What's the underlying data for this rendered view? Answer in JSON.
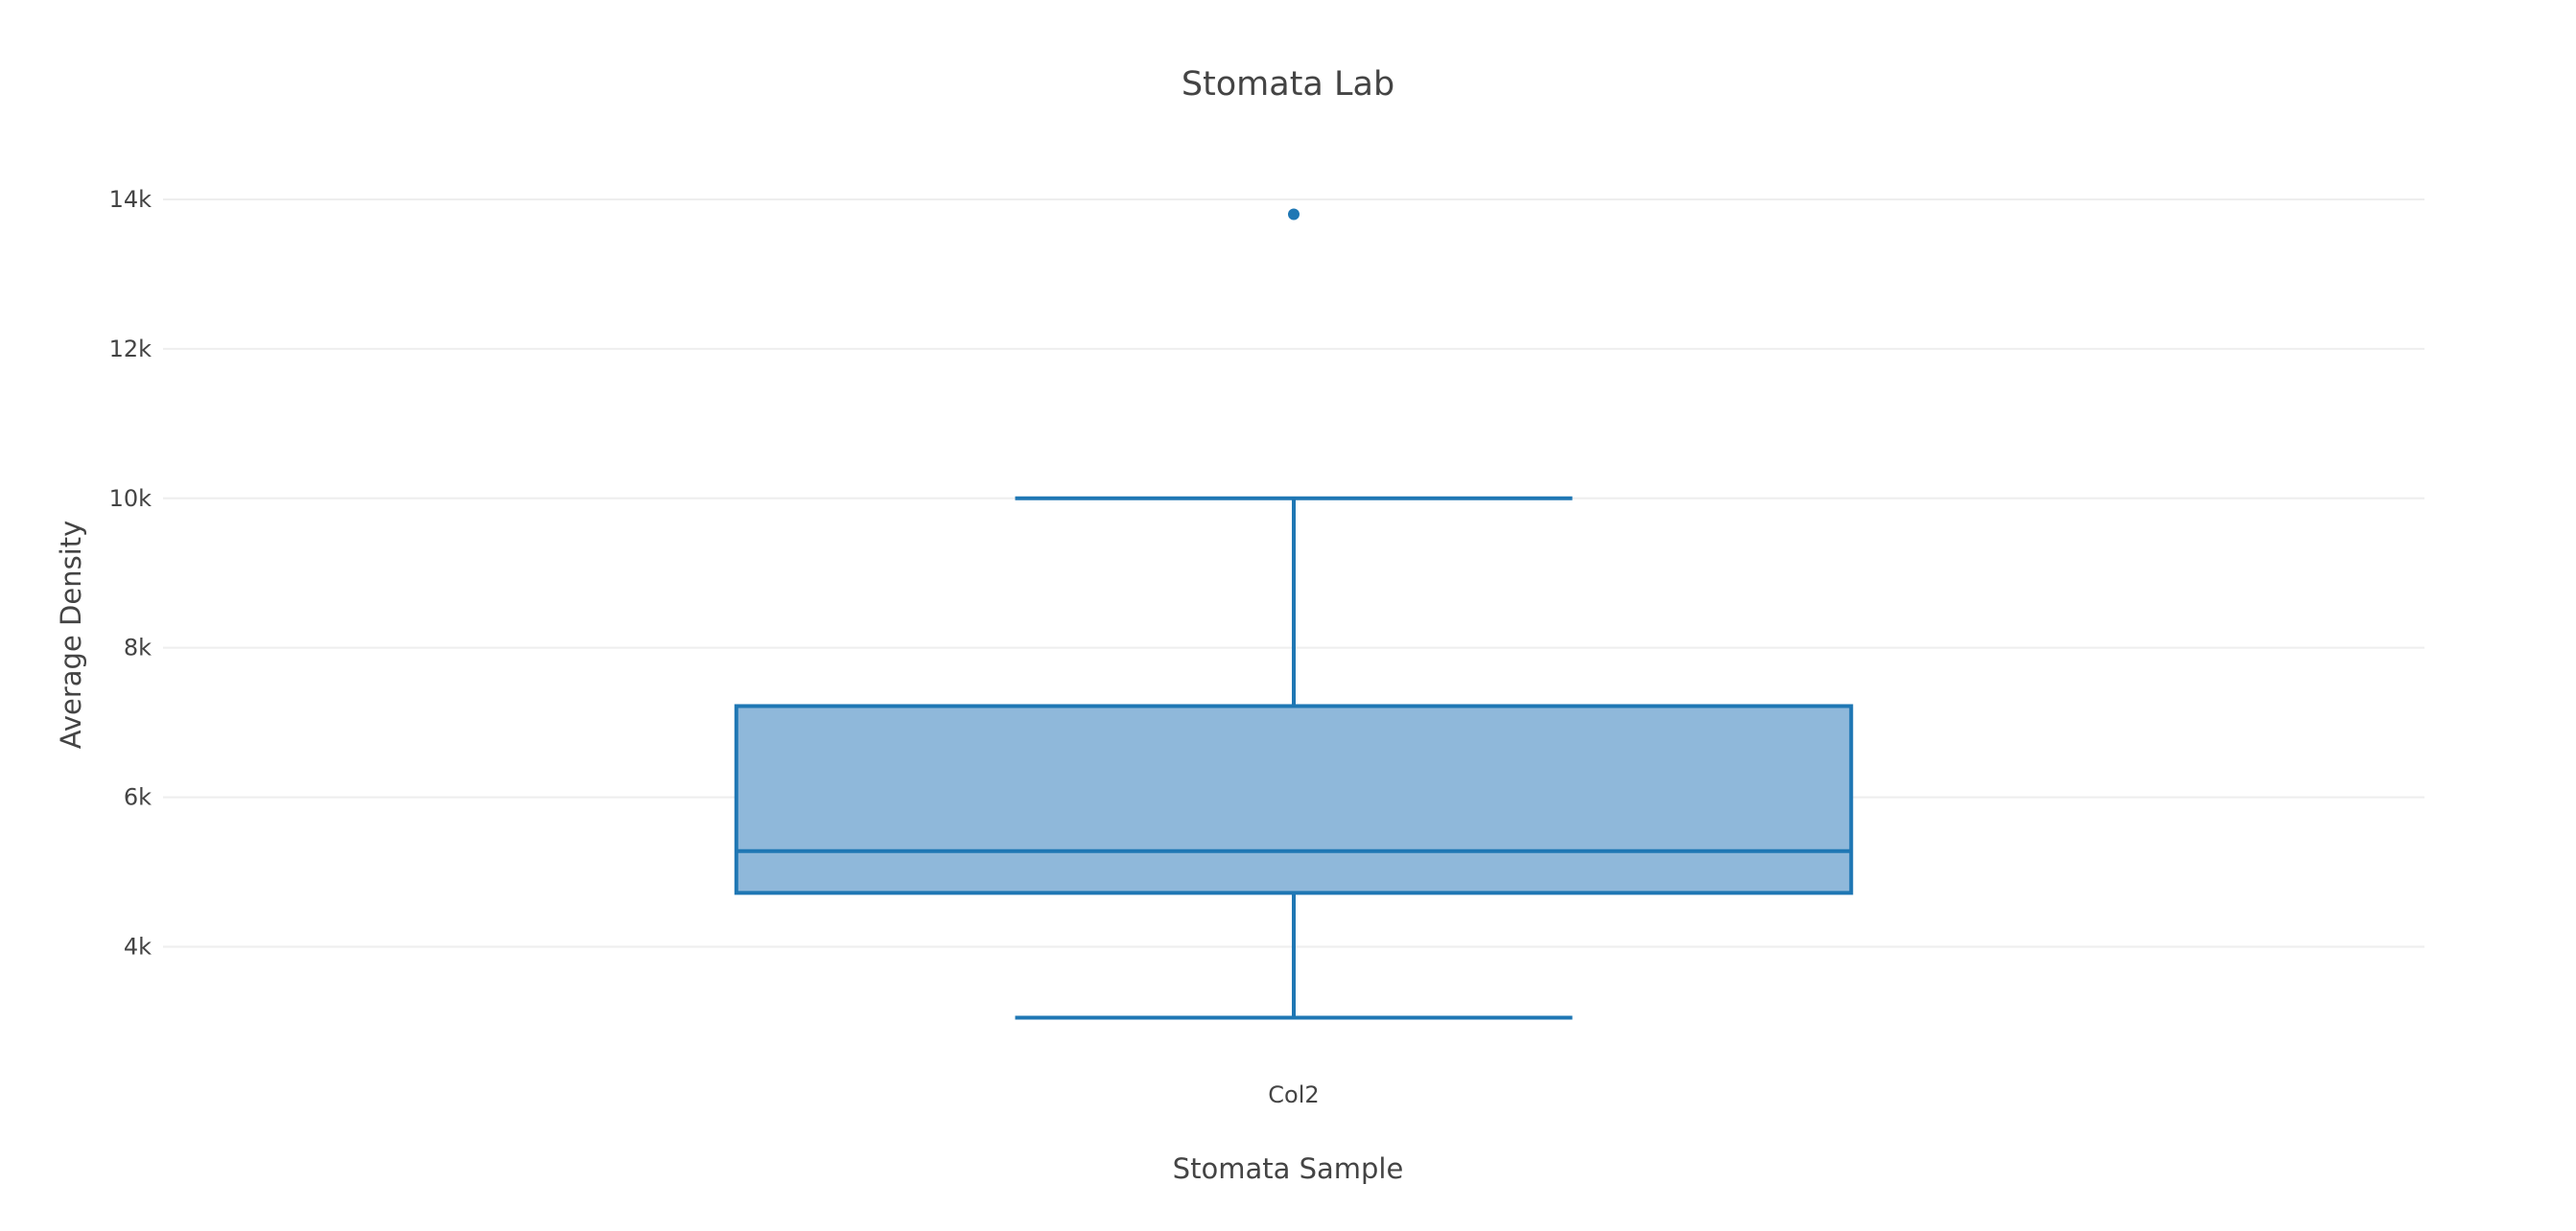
{
  "chart_data": {
    "type": "box",
    "title": "Stomata Lab",
    "xlabel": "Stomata Sample",
    "ylabel": "Average Density",
    "grid": "horizontal",
    "ylim": [
      2300,
      15000
    ],
    "yticks": [
      4000,
      6000,
      8000,
      10000,
      12000,
      14000
    ],
    "ytick_labels": [
      "4k",
      "6k",
      "8k",
      "10k",
      "12k",
      "14k"
    ],
    "color": "#1f77b4",
    "fill_color": "#8fb8da",
    "series": [
      {
        "category": "Col2",
        "lower_whisker": 3050,
        "q1": 4720,
        "median": 5280,
        "q3": 7220,
        "upper_whisker": 10000,
        "outliers": [
          13800
        ]
      }
    ]
  }
}
